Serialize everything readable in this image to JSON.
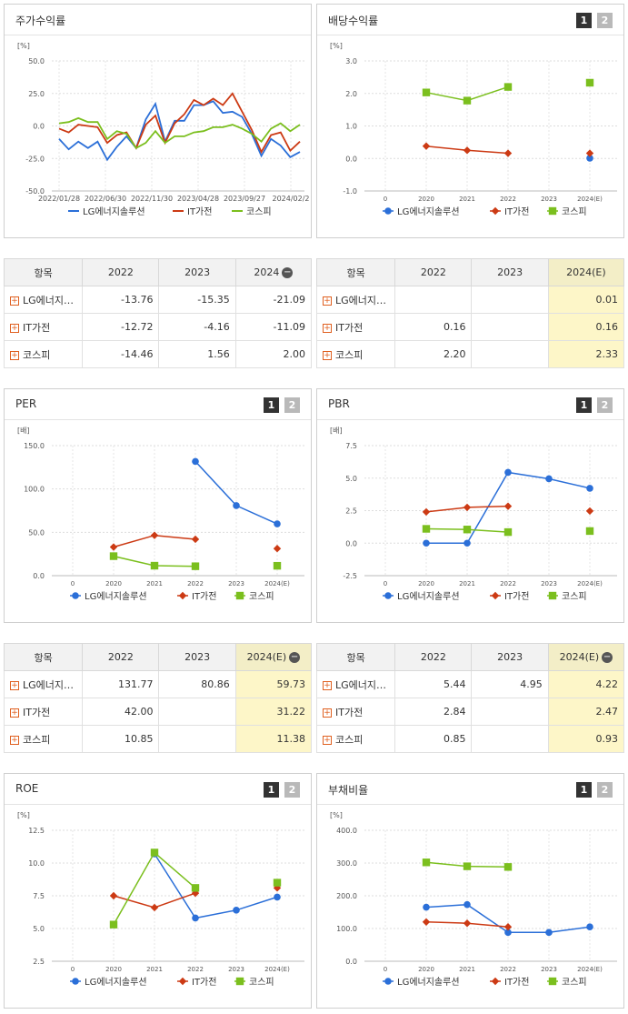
{
  "colors": {
    "lg": "#2b6fd8",
    "it": "#cc3a14",
    "kospi": "#7bbf1e"
  },
  "panels": {
    "stock": {
      "title": "주가수익률"
    },
    "div": {
      "title": "배당수익률",
      "page1": "1",
      "page2": "2"
    },
    "per": {
      "title": "PER",
      "page1": "1",
      "page2": "2"
    },
    "pbr": {
      "title": "PBR",
      "page1": "1",
      "page2": "2"
    },
    "roe": {
      "title": "ROE",
      "page1": "1",
      "page2": "2"
    },
    "debt": {
      "title": "부채비율",
      "page1": "1",
      "page2": "2"
    }
  },
  "legend": [
    "LG에너지솔루션",
    "IT가전",
    "코스피"
  ],
  "chart_data": [
    {
      "id": "stock",
      "type": "line",
      "unit": "[%]",
      "ylim": [
        -50,
        50
      ],
      "yticks": [
        "50.0",
        "25.0",
        "0.0",
        "-25.0",
        "-50.0"
      ],
      "xticks": [
        "2022/01/28",
        "2022/06/30",
        "2022/11/30",
        "2023/04/28",
        "2023/09/27",
        "2024/02/2"
      ],
      "series": [
        {
          "name": "LG에너지솔루션",
          "values": [
            -10,
            -18,
            -12,
            -17,
            -12,
            -26,
            -16,
            -8,
            -17,
            5,
            17,
            -12,
            4,
            4,
            16,
            16,
            19,
            10,
            11,
            7,
            -6,
            -23,
            -10,
            -15,
            -24,
            -20
          ]
        },
        {
          "name": "IT가전",
          "values": [
            -2,
            -5,
            1,
            0,
            -1,
            -13,
            -7,
            -5,
            -17,
            1,
            8,
            -13,
            2,
            9,
            20,
            16,
            21,
            16,
            25,
            11,
            -3,
            -20,
            -7,
            -5,
            -19,
            -12
          ]
        },
        {
          "name": "코스피",
          "values": [
            2,
            3,
            6,
            3,
            3,
            -10,
            -4,
            -6,
            -17,
            -13,
            -4,
            -13,
            -8,
            -8,
            -5,
            -4,
            -1,
            -1,
            1,
            -2,
            -6,
            -12,
            -2,
            2,
            -4,
            1
          ]
        }
      ]
    },
    {
      "id": "div",
      "type": "line",
      "unit": "[%]",
      "ylim": [
        -1,
        3
      ],
      "yticks": [
        "3.0",
        "2.0",
        "1.0",
        "0.0",
        "-1.0"
      ],
      "categories": [
        "0",
        "2020",
        "2021",
        "2022",
        "2023",
        "2024(E)"
      ],
      "series": [
        {
          "name": "LG에너지솔루션",
          "values": [
            null,
            null,
            null,
            null,
            null,
            0.01
          ]
        },
        {
          "name": "IT가전",
          "values": [
            null,
            0.38,
            0.25,
            0.16,
            null,
            0.16
          ]
        },
        {
          "name": "코스피",
          "values": [
            null,
            2.03,
            1.78,
            2.2,
            null,
            2.33
          ]
        }
      ]
    },
    {
      "id": "per",
      "type": "line",
      "unit": "[배]",
      "ylim": [
        0,
        150
      ],
      "yticks": [
        "150.0",
        "100.0",
        "50.0",
        "0.0"
      ],
      "categories": [
        "0",
        "2020",
        "2021",
        "2022",
        "2023",
        "2024(E)"
      ],
      "series": [
        {
          "name": "LG에너지솔루션",
          "values": [
            null,
            null,
            null,
            131.77,
            80.86,
            59.73
          ]
        },
        {
          "name": "IT가전",
          "values": [
            null,
            33,
            46.5,
            42.0,
            null,
            31.22
          ]
        },
        {
          "name": "코스피",
          "values": [
            null,
            22.5,
            11.5,
            10.85,
            null,
            11.38
          ]
        }
      ]
    },
    {
      "id": "pbr",
      "type": "line",
      "unit": "[배]",
      "ylim": [
        -2.5,
        7.5
      ],
      "yticks": [
        "7.5",
        "5.0",
        "2.5",
        "0.0",
        "-2.5"
      ],
      "categories": [
        "0",
        "2020",
        "2021",
        "2022",
        "2023",
        "2024(E)"
      ],
      "series": [
        {
          "name": "LG에너지솔루션",
          "values": [
            null,
            0,
            0,
            5.44,
            4.95,
            4.22
          ]
        },
        {
          "name": "IT가전",
          "values": [
            null,
            2.4,
            2.75,
            2.84,
            null,
            2.47
          ]
        },
        {
          "name": "코스피",
          "values": [
            null,
            1.1,
            1.05,
            0.85,
            null,
            0.93
          ]
        }
      ]
    },
    {
      "id": "roe",
      "type": "line",
      "unit": "[%]",
      "ylim": [
        2.5,
        12.5
      ],
      "yticks": [
        "12.5",
        "10.0",
        "7.5",
        "5.0",
        "2.5"
      ],
      "categories": [
        "0",
        "2020",
        "2021",
        "2022",
        "2023",
        "2024(E)"
      ],
      "series": [
        {
          "name": "LG에너지솔루션",
          "values": [
            null,
            null,
            10.7,
            5.8,
            6.4,
            7.4
          ]
        },
        {
          "name": "IT가전",
          "values": [
            null,
            7.5,
            6.6,
            7.7,
            null,
            8.1
          ]
        },
        {
          "name": "코스피",
          "values": [
            null,
            5.3,
            10.8,
            8.1,
            null,
            8.5
          ]
        }
      ]
    },
    {
      "id": "debt",
      "type": "line",
      "unit": "[%]",
      "ylim": [
        0,
        400
      ],
      "yticks": [
        "400.0",
        "300.0",
        "200.0",
        "100.0",
        "0.0"
      ],
      "categories": [
        "0",
        "2020",
        "2021",
        "2022",
        "2023",
        "2024(E)"
      ],
      "series": [
        {
          "name": "LG에너지솔루션",
          "values": [
            null,
            165,
            173,
            88,
            88,
            105
          ]
        },
        {
          "name": "IT가전",
          "values": [
            null,
            120,
            116,
            105,
            null,
            null
          ]
        },
        {
          "name": "코스피",
          "values": [
            null,
            302,
            290,
            288,
            null,
            null
          ]
        }
      ]
    }
  ],
  "tables": {
    "stock": {
      "headers": [
        "항목",
        "2022",
        "2023",
        "2024"
      ],
      "rows": [
        {
          "name": "LG에너지…",
          "v": [
            "-13.76",
            "-15.35",
            "-21.09"
          ]
        },
        {
          "name": "IT가전",
          "v": [
            "-12.72",
            "-4.16",
            "-11.09"
          ]
        },
        {
          "name": "코스피",
          "v": [
            "-14.46",
            "1.56",
            "2.00"
          ]
        }
      ]
    },
    "div": {
      "headers": [
        "항목",
        "2022",
        "2023",
        "2024(E)"
      ],
      "rows": [
        {
          "name": "LG에너지…",
          "v": [
            "",
            "",
            "0.01"
          ]
        },
        {
          "name": "IT가전",
          "v": [
            "0.16",
            "",
            "0.16"
          ]
        },
        {
          "name": "코스피",
          "v": [
            "2.20",
            "",
            "2.33"
          ]
        }
      ]
    },
    "per": {
      "headers": [
        "항목",
        "2022",
        "2023",
        "2024(E)"
      ],
      "rows": [
        {
          "name": "LG에너지…",
          "v": [
            "131.77",
            "80.86",
            "59.73"
          ]
        },
        {
          "name": "IT가전",
          "v": [
            "42.00",
            "",
            "31.22"
          ]
        },
        {
          "name": "코스피",
          "v": [
            "10.85",
            "",
            "11.38"
          ]
        }
      ]
    },
    "pbr": {
      "headers": [
        "항목",
        "2022",
        "2023",
        "2024(E)"
      ],
      "rows": [
        {
          "name": "LG에너지…",
          "v": [
            "5.44",
            "4.95",
            "4.22"
          ]
        },
        {
          "name": "IT가전",
          "v": [
            "2.84",
            "",
            "2.47"
          ]
        },
        {
          "name": "코스피",
          "v": [
            "0.85",
            "",
            "0.93"
          ]
        }
      ]
    }
  }
}
